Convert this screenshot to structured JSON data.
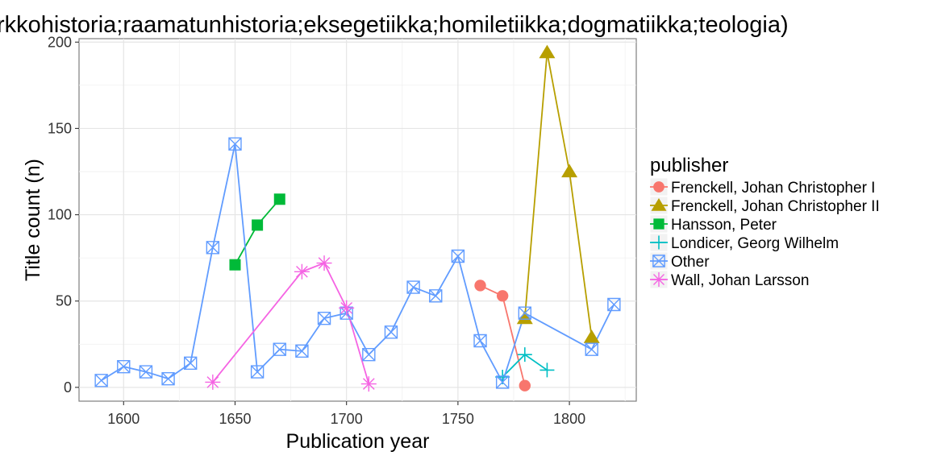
{
  "chart_data": {
    "type": "line",
    "title": "rkkohistoria;raamatunhistoria;eksegetiikka;homiletiikka;dogmatiikka;teologia)",
    "xlabel": "Publication year",
    "ylabel": "Title count (n)",
    "xlim": [
      1580,
      1830
    ],
    "ylim": [
      -8,
      202
    ],
    "xticks": [
      1600,
      1650,
      1700,
      1750,
      1800
    ],
    "yticks": [
      0,
      50,
      100,
      150,
      200
    ],
    "grid": true,
    "legend": {
      "title": "publisher",
      "position": "right"
    },
    "series": [
      {
        "name": "Frenckell, Johan Christopher I",
        "color": "#F8766D",
        "marker": "circle",
        "x": [
          1760,
          1770,
          1780
        ],
        "y": [
          59,
          53,
          1
        ]
      },
      {
        "name": "Frenckell, Johan Christopher II",
        "color": "#B79F00",
        "marker": "triangle",
        "x": [
          1780,
          1790,
          1800,
          1810
        ],
        "y": [
          40,
          194,
          125,
          29
        ]
      },
      {
        "name": "Hansson, Peter",
        "color": "#00BA38",
        "marker": "square",
        "x": [
          1650,
          1660,
          1670
        ],
        "y": [
          71,
          94,
          109
        ]
      },
      {
        "name": "Londicer, Georg Wilhelm",
        "color": "#00BFC4",
        "marker": "plus",
        "x": [
          1770,
          1780,
          1790
        ],
        "y": [
          6,
          19,
          10
        ]
      },
      {
        "name": "Other",
        "color": "#619CFF",
        "marker": "boxcross",
        "x": [
          1590,
          1600,
          1610,
          1620,
          1630,
          1640,
          1650,
          1660,
          1670,
          1680,
          1690,
          1700,
          1710,
          1720,
          1730,
          1740,
          1750,
          1760,
          1770,
          1780,
          1810,
          1820
        ],
        "y": [
          4,
          12,
          9,
          5,
          14,
          81,
          141,
          9,
          22,
          21,
          40,
          43,
          19,
          32,
          58,
          53,
          76,
          27,
          3,
          43,
          22,
          48
        ]
      },
      {
        "name": "Wall, Johan Larsson",
        "color": "#F564E3",
        "marker": "asterisk",
        "x": [
          1640,
          1680,
          1690,
          1700,
          1710
        ],
        "y": [
          3,
          67,
          72,
          46,
          2
        ]
      }
    ]
  }
}
